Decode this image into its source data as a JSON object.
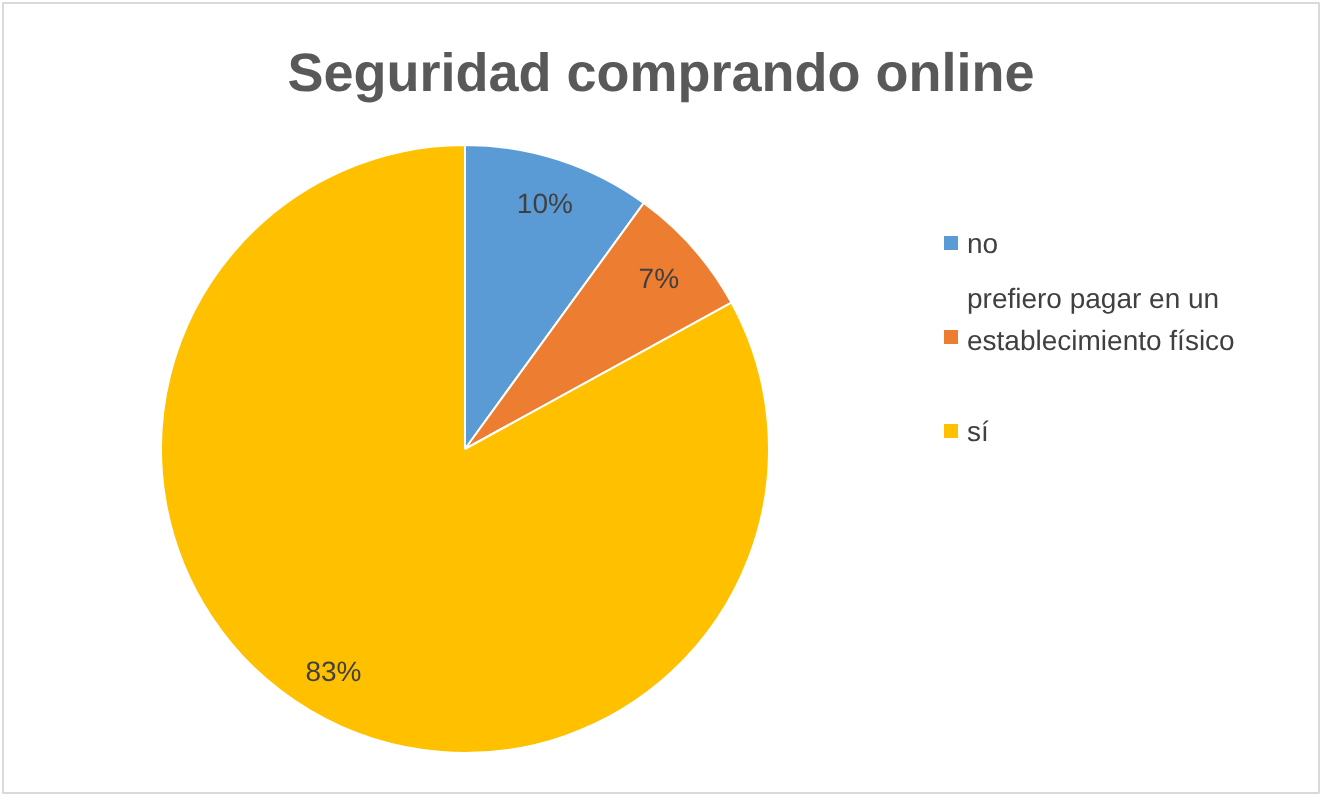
{
  "chart_data": {
    "type": "pie",
    "title": "Seguridad comprando online",
    "categories": [
      "no",
      "prefiero pagar en un establecimiento físico",
      "sí"
    ],
    "values": [
      10,
      7,
      83
    ],
    "colors": [
      "#5b9bd5",
      "#ed7d31",
      "#ffc000"
    ],
    "value_labels": [
      "10%",
      "7%",
      "83%"
    ],
    "legend": "right"
  }
}
